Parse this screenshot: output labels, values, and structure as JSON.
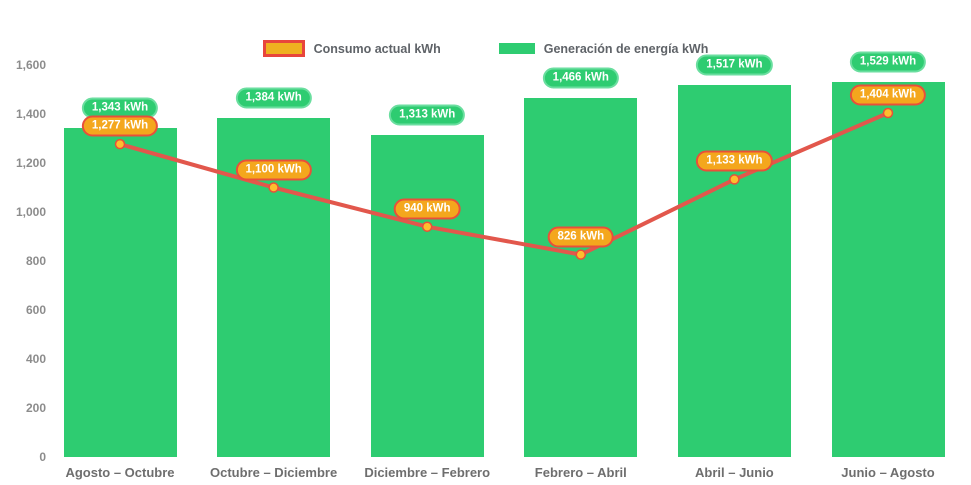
{
  "legend": {
    "consumo_label": "Consumo actual kWh",
    "generacion_label": "Generación de energía kWh"
  },
  "colors": {
    "bar_green": "#2ecc71",
    "green_pill_fill": "#2ecc71",
    "green_pill_border": "#6ade9f",
    "line_red": "#e2574c",
    "point_fill": "#ffbe2e",
    "point_border": "#e8503a",
    "orange_pill_fill": "#f4a71d",
    "orange_pill_border": "#e8503a",
    "legend_consumo_fill": "#efb020",
    "legend_consumo_border": "#e8453c",
    "yaxis_text": "#8c8c8c",
    "xaxis_text": "#6e6e6e",
    "legend_text": "#5f6368"
  },
  "chart_data": {
    "type": "bar",
    "subtype": "bar-line-combo",
    "categories": [
      "Agosto – Octubre",
      "Octubre – Diciembre",
      "Diciembre – Febrero",
      "Febrero – Abril",
      "Abril – Junio",
      "Junio – Agosto"
    ],
    "series": [
      {
        "name": "Generación de energía kWh",
        "type": "bar",
        "color": "#2ecc71",
        "values": [
          1343,
          1384,
          1313,
          1466,
          1517,
          1529
        ],
        "labels": [
          "1,343 kWh",
          "1,384 kWh",
          "1,313 kWh",
          "1,466 kWh",
          "1,517 kWh",
          "1,529 kWh"
        ]
      },
      {
        "name": "Consumo actual kWh",
        "type": "line",
        "color": "#e2574c",
        "values": [
          1277,
          1100,
          940,
          826,
          1133,
          1404
        ],
        "labels": [
          "1,277 kWh",
          "1,100 kWh",
          "940 kWh",
          "826 kWh",
          "1,133 kWh",
          "1,404 kWh"
        ]
      }
    ],
    "title": "",
    "xlabel": "",
    "ylabel": "",
    "ylim": [
      0,
      1600
    ],
    "ytick_step": 200,
    "ytick_labels": [
      "0",
      "200",
      "400",
      "600",
      "800",
      "1,000",
      "1,200",
      "1,400",
      "1,600"
    ],
    "grid": false,
    "legend_position": "top-center"
  }
}
